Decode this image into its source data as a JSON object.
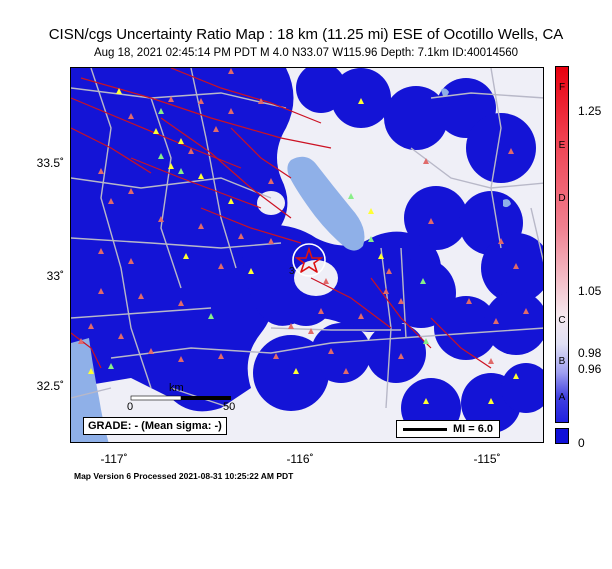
{
  "title": "CISN/cgs Uncertainty Ratio Map : 18 km (11.25 mi) ESE of Ocotillo Wells, CA",
  "subtitle": "Aug 18, 2021 02:45:14 PM PDT   M 4.0   N33.07 W115.96   Depth: 7.1km   ID:40014560",
  "lat_labels": [
    "33.5˚",
    "33˚",
    "32.5˚"
  ],
  "lon_labels": [
    "-117˚",
    "-116˚",
    "-115˚"
  ],
  "scale": {
    "unit": "km",
    "ticks": [
      "0",
      "50"
    ]
  },
  "grade_text": "GRADE: - (Mean sigma: -)",
  "mi_text": "MI = 6.0",
  "epicenter_label": "3",
  "colorbar": {
    "letters": [
      "F",
      "E",
      "D",
      "C",
      "B",
      "A"
    ],
    "values": [
      "1.25",
      "1.05",
      "0.98",
      "0.96",
      "0"
    ],
    "colors": {
      "top": "#e8000f",
      "upper": "#f08090",
      "mid": "#f0eef4",
      "lower": "#a0a0f0",
      "bottom": "#2020e0",
      "zero": "#1010d8"
    }
  },
  "map_colors": {
    "blue": "#1212d6",
    "water": "#8fb0e8",
    "road": "#b8b8c8",
    "fault": "#cc1122",
    "land": "#efeff7"
  },
  "footer": "Map Version 6 Processed 2021-08-31 10:25:22 AM PDT"
}
